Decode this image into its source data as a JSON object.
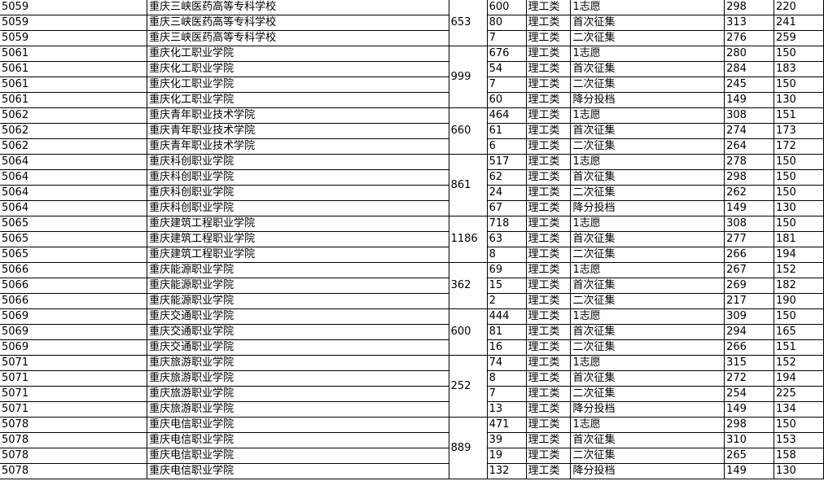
{
  "schools": [
    {
      "code": "5059",
      "name": "重庆三峡医药高等专科学校",
      "total": "653",
      "rows": [
        [
          "600",
          "理工类",
          "1志愿",
          "298",
          "220"
        ],
        [
          "80",
          "理工类",
          "首次征集",
          "313",
          "241"
        ],
        [
          "7",
          "理工类",
          "二次征集",
          "276",
          "259"
        ]
      ]
    },
    {
      "code": "5061",
      "name": "重庆化工职业学院",
      "total": "999",
      "rows": [
        [
          "676",
          "理工类",
          "1志愿",
          "280",
          "150"
        ],
        [
          "54",
          "理工类",
          "首次征集",
          "284",
          "183"
        ],
        [
          "7",
          "理工类",
          "二次征集",
          "245",
          "150"
        ],
        [
          "60",
          "理工类",
          "降分投档",
          "149",
          "130"
        ]
      ]
    },
    {
      "code": "5062",
      "name": "重庆青年职业技术学院",
      "total": "660",
      "rows": [
        [
          "464",
          "理工类",
          "1志愿",
          "308",
          "151"
        ],
        [
          "61",
          "理工类",
          "首次征集",
          "274",
          "173"
        ],
        [
          "6",
          "理工类",
          "二次征集",
          "264",
          "172"
        ]
      ]
    },
    {
      "code": "5064",
      "name": "重庆科创职业学院",
      "total": "861",
      "rows": [
        [
          "517",
          "理工类",
          "1志愿",
          "278",
          "150"
        ],
        [
          "62",
          "理工类",
          "首次征集",
          "298",
          "150"
        ],
        [
          "24",
          "理工类",
          "二次征集",
          "262",
          "150"
        ],
        [
          "67",
          "理工类",
          "降分投档",
          "149",
          "130"
        ]
      ]
    },
    {
      "code": "5065",
      "name": "重庆建筑工程职业学院",
      "total": "1186",
      "rows": [
        [
          "718",
          "理工类",
          "1志愿",
          "308",
          "150"
        ],
        [
          "63",
          "理工类",
          "首次征集",
          "277",
          "181"
        ],
        [
          "8",
          "理工类",
          "二次征集",
          "266",
          "194"
        ]
      ]
    },
    {
      "code": "5066",
      "name": "重庆能源职业学院",
      "total": "362",
      "rows": [
        [
          "69",
          "理工类",
          "1志愿",
          "267",
          "152"
        ],
        [
          "15",
          "理工类",
          "首次征集",
          "269",
          "182"
        ],
        [
          "2",
          "理工类",
          "二次征集",
          "217",
          "190"
        ]
      ]
    },
    {
      "code": "5069",
      "name": "重庆交通职业学院",
      "total": "600",
      "rows": [
        [
          "444",
          "理工类",
          "1志愿",
          "309",
          "150"
        ],
        [
          "81",
          "理工类",
          "首次征集",
          "294",
          "165"
        ],
        [
          "16",
          "理工类",
          "二次征集",
          "266",
          "151"
        ]
      ]
    },
    {
      "code": "5071",
      "name": "重庆旅游职业学院",
      "total": "252",
      "rows": [
        [
          "74",
          "理工类",
          "1志愿",
          "315",
          "152"
        ],
        [
          "8",
          "理工类",
          "首次征集",
          "272",
          "194"
        ],
        [
          "7",
          "理工类",
          "二次征集",
          "254",
          "225"
        ],
        [
          "13",
          "理工类",
          "降分投档",
          "149",
          "134"
        ]
      ]
    },
    {
      "code": "5078",
      "name": "重庆电信职业学院",
      "total": "889",
      "rows": [
        [
          "471",
          "理工类",
          "1志愿",
          "298",
          "150"
        ],
        [
          "39",
          "理工类",
          "首次征集",
          "310",
          "153"
        ],
        [
          "19",
          "理工类",
          "二次征集",
          "265",
          "158"
        ],
        [
          "132",
          "理工类",
          "降分投档",
          "149",
          "130"
        ]
      ]
    }
  ]
}
